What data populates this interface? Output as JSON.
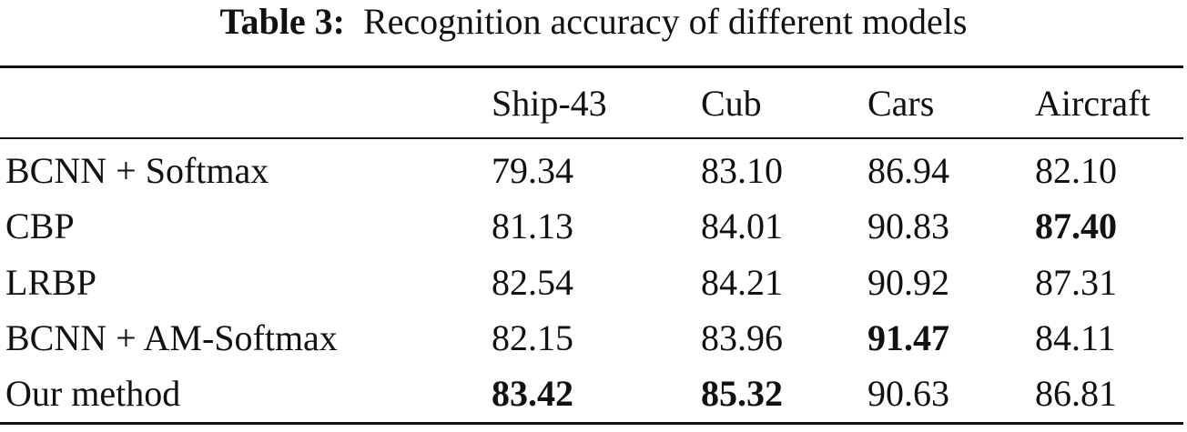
{
  "caption": {
    "label": "Table 3:",
    "text": "Recognition accuracy of different models"
  },
  "table": {
    "columns": [
      "",
      "Ship-43",
      "Cub",
      "Cars",
      "Aircraft"
    ],
    "rows": [
      {
        "model": "BCNN + Softmax",
        "values": [
          "79.34",
          "83.10",
          "86.94",
          "82.10"
        ],
        "bold": [
          false,
          false,
          false,
          false
        ]
      },
      {
        "model": "CBP",
        "values": [
          "81.13",
          "84.01",
          "90.83",
          "87.40"
        ],
        "bold": [
          false,
          false,
          false,
          true
        ]
      },
      {
        "model": "LRBP",
        "values": [
          "82.54",
          "84.21",
          "90.92",
          "87.31"
        ],
        "bold": [
          false,
          false,
          false,
          false
        ]
      },
      {
        "model": "BCNN + AM-Softmax",
        "values": [
          "82.15",
          "83.96",
          "91.47",
          "84.11"
        ],
        "bold": [
          false,
          false,
          true,
          false
        ]
      },
      {
        "model": "Our method",
        "values": [
          "83.42",
          "85.32",
          "90.63",
          "86.81"
        ],
        "bold": [
          true,
          true,
          false,
          false
        ]
      }
    ]
  }
}
